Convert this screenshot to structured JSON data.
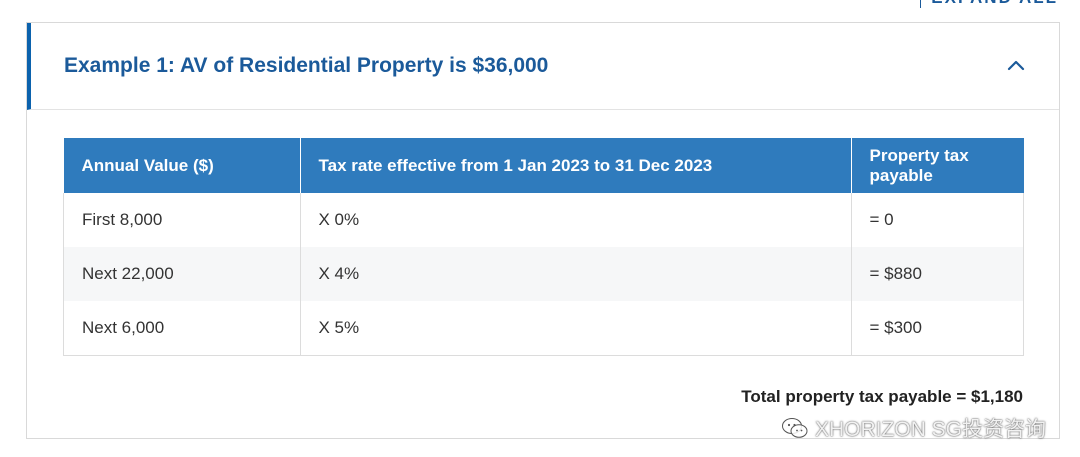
{
  "header": {
    "expand_all_label": "EXPAND ALL"
  },
  "accordion": {
    "title": "Example 1: AV of Residential Property is $36,000",
    "toggle_icon": "chevron-up-icon",
    "expanded": true
  },
  "table": {
    "columns": [
      "Annual Value ($)",
      "Tax rate effective from 1 Jan 2023 to 31 Dec 2023",
      "Property tax payable"
    ],
    "rows": [
      [
        "First 8,000",
        "X 0%",
        "= 0"
      ],
      [
        "Next 22,000",
        "X 4%",
        "= $880"
      ],
      [
        "Next 6,000",
        "X 5%",
        "= $300"
      ]
    ]
  },
  "total": {
    "label": "Total property tax payable = $1,180"
  },
  "watermark": {
    "icon": "wechat-icon",
    "text": "XHORIZON SG投资咨询"
  },
  "colors": {
    "accent": "#1b5a9a",
    "table_header": "#2f7bbd",
    "left_border": "#0b62ad"
  }
}
